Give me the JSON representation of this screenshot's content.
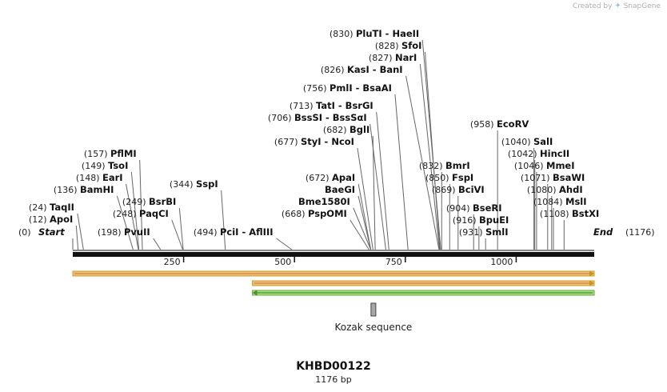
{
  "credit": {
    "prefix": "Created by",
    "brand": "SnapGene",
    "icon": "snapgene-logo-icon"
  },
  "sequence": {
    "name": "KHBD00122",
    "length_label": "1176 bp",
    "length": 1176
  },
  "ruler": {
    "ticks": [
      250,
      500,
      750,
      1000
    ]
  },
  "ends": {
    "start": {
      "label": "Start",
      "pos_label": "(0)",
      "position": 0
    },
    "end": {
      "label": "End",
      "pos_label": "(1176)",
      "position": 1176
    }
  },
  "sites": [
    {
      "name": "ApoI",
      "pos_label": "(12)",
      "position": 12
    },
    {
      "name": "TaqII",
      "pos_label": "(24)",
      "position": 24
    },
    {
      "name": "BamHI",
      "pos_label": "(136)",
      "position": 136
    },
    {
      "name": "EarI",
      "pos_label": "(148)",
      "position": 148
    },
    {
      "name": "TsoI",
      "pos_label": "(149)",
      "position": 149
    },
    {
      "name": "PflMI",
      "pos_label": "(157)",
      "position": 157
    },
    {
      "name": "PvuII",
      "pos_label": "(198)",
      "position": 198
    },
    {
      "name": "PaqCI",
      "pos_label": "(248)",
      "position": 248
    },
    {
      "name": "BsrBI",
      "pos_label": "(249)",
      "position": 249
    },
    {
      "name": "SspI",
      "pos_label": "(344)",
      "position": 344
    },
    {
      "name": "PciI  -  AflIII",
      "pos_label": "(494)",
      "position": 494
    },
    {
      "name": "PspOMI",
      "pos_label": "(668)",
      "position": 668
    },
    {
      "name": "Bme1580I",
      "pos_label": "",
      "position": 672
    },
    {
      "name": "BaeGI",
      "pos_label": "",
      "position": 672
    },
    {
      "name": "ApaI",
      "pos_label": "(672)",
      "position": 672
    },
    {
      "name": "StyI  -  NcoI",
      "pos_label": "(677)",
      "position": 677
    },
    {
      "name": "BglI",
      "pos_label": "(682)",
      "position": 682
    },
    {
      "name": "BssSI  -  BssSαI",
      "pos_label": "(706)",
      "position": 706
    },
    {
      "name": "TatI  -  BsrGI",
      "pos_label": "(713)",
      "position": 713
    },
    {
      "name": "PmlI  -  BsaAI",
      "pos_label": "(756)",
      "position": 756
    },
    {
      "name": "KasI  -  BanI",
      "pos_label": "(826)",
      "position": 826
    },
    {
      "name": "NarI",
      "pos_label": "(827)",
      "position": 827
    },
    {
      "name": "SfoI",
      "pos_label": "(828)",
      "position": 828
    },
    {
      "name": "PluTI  -  HaeII",
      "pos_label": "(830)",
      "position": 830
    },
    {
      "name": "BmrI",
      "pos_label": "(832)",
      "position": 832
    },
    {
      "name": "FspI",
      "pos_label": "(850)",
      "position": 850
    },
    {
      "name": "BciVI",
      "pos_label": "(869)",
      "position": 869
    },
    {
      "name": "BseRI",
      "pos_label": "(904)",
      "position": 904
    },
    {
      "name": "BpuEI",
      "pos_label": "(916)",
      "position": 916
    },
    {
      "name": "SmlI",
      "pos_label": "(931)",
      "position": 931
    },
    {
      "name": "EcoRV",
      "pos_label": "(958)",
      "position": 958
    },
    {
      "name": "SalI",
      "pos_label": "(1040)",
      "position": 1040
    },
    {
      "name": "HincII",
      "pos_label": "(1042)",
      "position": 1042
    },
    {
      "name": "MmeI",
      "pos_label": "(1046)",
      "position": 1046
    },
    {
      "name": "BsaWI",
      "pos_label": "(1071)",
      "position": 1071
    },
    {
      "name": "AhdI",
      "pos_label": "(1080)",
      "position": 1080
    },
    {
      "name": "MslI",
      "pos_label": "(1084)",
      "position": 1084
    },
    {
      "name": "BstXI",
      "pos_label": "(1108)",
      "position": 1108
    }
  ],
  "features": [
    {
      "name": "orange-feature-1",
      "start": 0,
      "end": 1176,
      "direction": "forward",
      "fill": "#f5b88a",
      "stroke": "#c8a020",
      "arrow": "#c8951a"
    },
    {
      "name": "orange-feature-2",
      "start": 405,
      "end": 1176,
      "direction": "forward",
      "fill": "#f5b88a",
      "stroke": "#c8a020",
      "arrow": "#c8951a"
    },
    {
      "name": "green-feature",
      "start": 405,
      "end": 1176,
      "direction": "reverse",
      "fill": "#9ee07a",
      "stroke": "#6aa84f",
      "arrow": "#4f8f32"
    }
  ],
  "kozak": {
    "label": "Kozak sequence",
    "position": 678,
    "color": "#a8a8a8"
  }
}
